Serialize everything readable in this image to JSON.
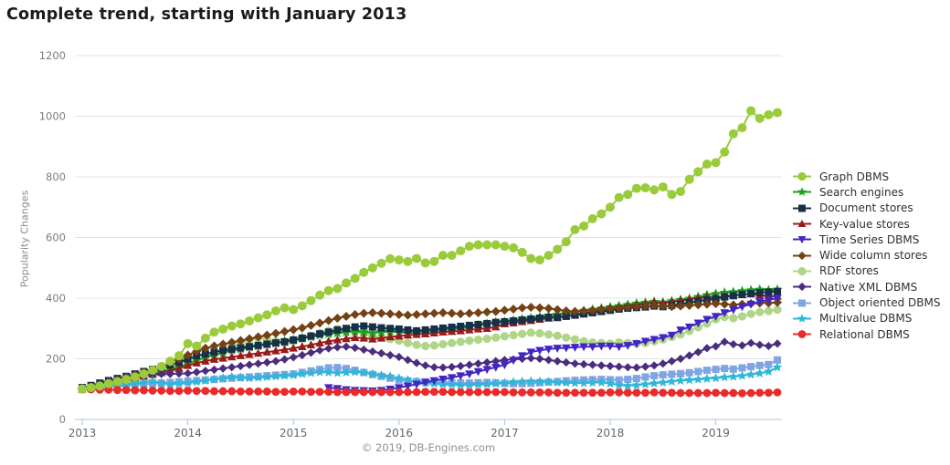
{
  "title": "Complete trend, starting with January 2013",
  "footer": "© 2019, DB-Engines.com",
  "chart_data": {
    "type": "line",
    "title": "Complete trend, starting with January 2013",
    "xlabel": "",
    "ylabel": "Popularity Changes",
    "ylim": [
      0,
      1200
    ],
    "yticks": [
      0,
      200,
      400,
      600,
      800,
      1000,
      1200
    ],
    "xticks": [
      "2013",
      "2014",
      "2015",
      "2016",
      "2017",
      "2018",
      "2019"
    ],
    "x_range": "monthly, January 2013 to August 2019 (80 points)",
    "grid": "horizontal",
    "legend_position": "right",
    "axis_color": "#a8c4de",
    "gridline_color": "#e4e4e4",
    "series": [
      {
        "id": "graph-dbms",
        "name": "Graph DBMS",
        "color": "#9acb3b",
        "marker": "circle",
        "values": [
          100,
          105,
          110,
          118,
          125,
          132,
          140,
          150,
          162,
          175,
          192,
          210,
          250,
          242,
          268,
          288,
          298,
          308,
          315,
          325,
          335,
          345,
          358,
          368,
          362,
          375,
          392,
          410,
          425,
          432,
          450,
          465,
          485,
          500,
          515,
          530,
          526,
          521,
          531,
          516,
          521,
          541,
          541,
          556,
          571,
          576,
          576,
          576,
          571,
          566,
          551,
          531,
          526,
          541,
          561,
          586,
          626,
          638,
          662,
          678,
          700,
          732,
          742,
          762,
          764,
          757,
          767,
          742,
          752,
          792,
          817,
          842,
          847,
          882,
          942,
          962,
          1018,
          993,
          1005,
          1012
        ]
      },
      {
        "id": "search-engines",
        "name": "Search engines",
        "color": "#1da11d",
        "marker": "star",
        "values": [
          100,
          105,
          112,
          118,
          125,
          130,
          138,
          145,
          152,
          158,
          165,
          172,
          185,
          195,
          205,
          212,
          220,
          228,
          232,
          238,
          242,
          248,
          252,
          258,
          262,
          268,
          272,
          278,
          282,
          285,
          288,
          290,
          288,
          285,
          288,
          290,
          288,
          285,
          288,
          290,
          292,
          295,
          298,
          300,
          305,
          310,
          315,
          320,
          322,
          326,
          330,
          334,
          338,
          342,
          346,
          350,
          354,
          358,
          362,
          366,
          370,
          374,
          378,
          382,
          385,
          388,
          386,
          390,
          394,
          398,
          404,
          410,
          414,
          418,
          420,
          423,
          426,
          428,
          426,
          428
        ]
      },
      {
        "id": "document-stores",
        "name": "Document stores",
        "color": "#173049",
        "marker": "square",
        "values": [
          105,
          112,
          120,
          128,
          135,
          142,
          150,
          158,
          165,
          172,
          180,
          188,
          200,
          210,
          216,
          222,
          228,
          232,
          236,
          240,
          244,
          248,
          252,
          256,
          262,
          268,
          275,
          282,
          288,
          295,
          300,
          305,
          308,
          305,
          302,
          300,
          298,
          295,
          292,
          295,
          298,
          301,
          304,
          307,
          310,
          313,
          316,
          320,
          322,
          325,
          328,
          331,
          334,
          337,
          336,
          340,
          344,
          348,
          352,
          356,
          360,
          364,
          367,
          369,
          371,
          374,
          372,
          376,
          380,
          385,
          390,
          395,
          398,
          404,
          408,
          412,
          415,
          418,
          420,
          422
        ]
      },
      {
        "id": "key-value-stores",
        "name": "Key-value stores",
        "color": "#981b1b",
        "marker": "triangle-up",
        "values": [
          100,
          106,
          112,
          118,
          124,
          130,
          136,
          142,
          148,
          154,
          160,
          168,
          178,
          186,
          192,
          198,
          202,
          206,
          210,
          214,
          218,
          222,
          226,
          230,
          235,
          240,
          246,
          252,
          258,
          262,
          266,
          270,
          268,
          265,
          268,
          272,
          275,
          278,
          280,
          282,
          285,
          288,
          290,
          292,
          295,
          298,
          300,
          305,
          315,
          318,
          322,
          326,
          330,
          334,
          338,
          342,
          346,
          350,
          354,
          358,
          362,
          368,
          374,
          378,
          382,
          386,
          384,
          388,
          392,
          396,
          400,
          404,
          402,
          406,
          410,
          412,
          414,
          410,
          407,
          406
        ]
      },
      {
        "id": "time-series-dbms",
        "name": "Time Series DBMS",
        "color": "#4126c4",
        "marker": "triangle-down",
        "values": [
          null,
          null,
          null,
          null,
          null,
          null,
          null,
          null,
          null,
          null,
          null,
          null,
          null,
          null,
          null,
          null,
          null,
          null,
          null,
          null,
          null,
          null,
          null,
          null,
          null,
          null,
          null,
          null,
          105,
          102,
          98,
          96,
          95,
          94,
          96,
          100,
          105,
          110,
          116,
          122,
          128,
          133,
          138,
          144,
          150,
          158,
          165,
          172,
          180,
          195,
          210,
          222,
          228,
          232,
          235,
          236,
          238,
          240,
          240,
          242,
          242,
          240,
          244,
          250,
          258,
          264,
          270,
          278,
          295,
          305,
          318,
          330,
          340,
          352,
          362,
          372,
          380,
          388,
          394,
          400
        ]
      },
      {
        "id": "wide-column-stores",
        "name": "Wide column stores",
        "color": "#744114",
        "marker": "diamond",
        "values": [
          100,
          108,
          116,
          124,
          132,
          140,
          148,
          156,
          164,
          175,
          188,
          200,
          212,
          225,
          235,
          242,
          248,
          254,
          260,
          266,
          272,
          278,
          284,
          290,
          296,
          302,
          310,
          318,
          326,
          334,
          340,
          346,
          350,
          352,
          350,
          348,
          346,
          344,
          346,
          348,
          350,
          352,
          350,
          348,
          350,
          352,
          354,
          356,
          360,
          364,
          368,
          370,
          368,
          366,
          362,
          358,
          356,
          358,
          360,
          364,
          366,
          368,
          370,
          372,
          374,
          376,
          374,
          372,
          374,
          376,
          378,
          380,
          382,
          380,
          378,
          380,
          382,
          384,
          384,
          386
        ]
      },
      {
        "id": "rdf-stores",
        "name": "RDF stores",
        "color": "#b0d588",
        "marker": "circle",
        "values": [
          100,
          104,
          108,
          114,
          120,
          126,
          132,
          140,
          148,
          156,
          164,
          172,
          182,
          192,
          202,
          215,
          228,
          240,
          252,
          262,
          268,
          264,
          258,
          252,
          258,
          266,
          275,
          285,
          292,
          298,
          296,
          290,
          282,
          275,
          270,
          265,
          260,
          252,
          246,
          242,
          244,
          248,
          252,
          256,
          260,
          263,
          266,
          270,
          274,
          278,
          282,
          286,
          284,
          280,
          276,
          270,
          264,
          258,
          254,
          252,
          250,
          254,
          252,
          250,
          252,
          258,
          264,
          272,
          280,
          292,
          304,
          316,
          330,
          338,
          334,
          340,
          348,
          354,
          358,
          362
        ]
      },
      {
        "id": "native-xml-dbms",
        "name": "Native XML DBMS",
        "color": "#4c2c7e",
        "marker": "diamond",
        "values": [
          100,
          108,
          116,
          124,
          132,
          138,
          142,
          146,
          148,
          150,
          150,
          151,
          152,
          156,
          160,
          164,
          168,
          172,
          176,
          180,
          184,
          188,
          192,
          198,
          205,
          212,
          220,
          228,
          234,
          238,
          240,
          236,
          230,
          224,
          218,
          212,
          206,
          196,
          186,
          178,
          172,
          171,
          173,
          176,
          180,
          184,
          188,
          192,
          196,
          198,
          200,
          202,
          200,
          196,
          192,
          188,
          184,
          182,
          180,
          178,
          176,
          174,
          172,
          171,
          174,
          178,
          184,
          192,
          200,
          211,
          222,
          235,
          241,
          256,
          248,
          244,
          252,
          246,
          242,
          250
        ]
      },
      {
        "id": "object-oriented-dbms",
        "name": "Object oriented DBMS",
        "color": "#80a6e2",
        "marker": "square",
        "values": [
          100,
          103,
          106,
          108,
          110,
          112,
          114,
          116,
          118,
          120,
          122,
          124,
          126,
          128,
          130,
          132,
          134,
          136,
          138,
          140,
          142,
          144,
          146,
          148,
          150,
          155,
          160,
          165,
          170,
          171,
          168,
          162,
          155,
          148,
          142,
          136,
          130,
          127,
          125,
          124,
          123,
          122,
          121,
          120,
          120,
          121,
          122,
          121,
          119,
          118,
          118,
          119,
          121,
          123,
          125,
          127,
          129,
          130,
          131,
          132,
          131,
          130,
          132,
          135,
          140,
          144,
          147,
          149,
          151,
          154,
          158,
          162,
          165,
          168,
          166,
          170,
          174,
          178,
          181,
          196
        ]
      },
      {
        "id": "multivalue-dbms",
        "name": "Multivalue DBMS",
        "color": "#2fb6d9",
        "marker": "star",
        "values": [
          100,
          104,
          108,
          112,
          110,
          114,
          118,
          122,
          126,
          120,
          116,
          118,
          120,
          124,
          128,
          132,
          136,
          140,
          138,
          136,
          138,
          140,
          142,
          144,
          146,
          150,
          153,
          156,
          155,
          153,
          155,
          156,
          154,
          150,
          146,
          142,
          136,
          130,
          124,
          120,
          118,
          116,
          115,
          114,
          114,
          115,
          116,
          118,
          120,
          123,
          125,
          126,
          125,
          124,
          122,
          121,
          120,
          120,
          121,
          122,
          118,
          113,
          111,
          113,
          116,
          119,
          122,
          125,
          128,
          130,
          132,
          134,
          136,
          139,
          141,
          144,
          148,
          152,
          158,
          172
        ]
      },
      {
        "id": "relational-dbms",
        "name": "Relational DBMS",
        "color": "#ea2a2a",
        "marker": "circle",
        "values": [
          100,
          99,
          98,
          98,
          97,
          97,
          96,
          96,
          95,
          95,
          94,
          94,
          95,
          94,
          94,
          93,
          93,
          93,
          92,
          92,
          92,
          92,
          91,
          91,
          92,
          92,
          91,
          91,
          91,
          90,
          90,
          90,
          90,
          90,
          90,
          90,
          90,
          90,
          90,
          91,
          91,
          91,
          90,
          90,
          90,
          90,
          90,
          90,
          90,
          89,
          89,
          89,
          89,
          89,
          88,
          88,
          88,
          88,
          88,
          88,
          89,
          89,
          88,
          88,
          88,
          89,
          88,
          88,
          87,
          87,
          87,
          87,
          88,
          87,
          87,
          86,
          87,
          88,
          88,
          89
        ]
      }
    ]
  }
}
